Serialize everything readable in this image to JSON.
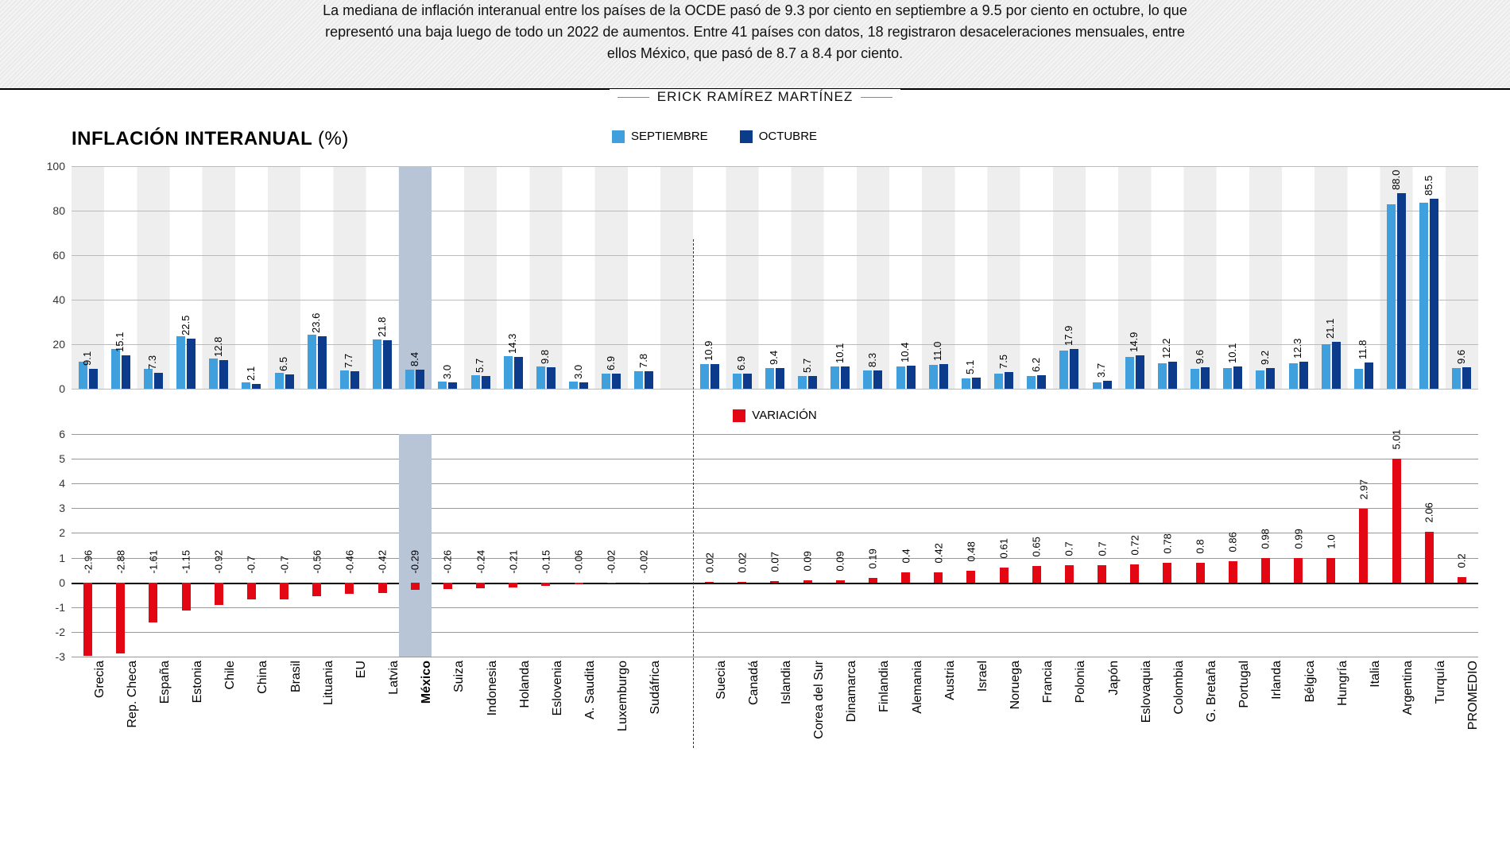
{
  "header": {
    "subtitle": "La mediana de inflación interanual entre los países de la OCDE pasó de 9.3 por ciento en septiembre a 9.5 por ciento en octubre, lo que representó una baja luego de todo un 2022 de aumentos. Entre 41 países con datos, 18 registraron desaceleraciones mensuales, entre ellos México, que pasó de 8.7 a 8.4 por ciento.",
    "author": "ERICK RAMÍREZ MARTÍNEZ"
  },
  "chart1": {
    "title": "INFLACIÓN INTERANUAL",
    "unit": "(%)",
    "legend": {
      "sep": "SEPTIEMBRE",
      "oct": "OCTUBRE"
    },
    "colors": {
      "sep": "#3fa0dd",
      "oct": "#0d3b8c",
      "stripe": "#eeeeee"
    },
    "yticks": [
      0,
      20,
      40,
      60,
      80,
      100
    ],
    "ymax": 100,
    "title_fontsize": 24
  },
  "chart2": {
    "legend": "VARIACIÓN",
    "color": "#e30613",
    "yticks": [
      -3,
      -2,
      -1,
      0,
      1,
      2,
      3,
      4,
      5,
      6
    ],
    "ymin": -3,
    "ymax": 6
  },
  "highlight_country": "México",
  "separator_after_index": 20,
  "countries": [
    {
      "name": "Grecia",
      "sep": 12.0,
      "oct": 9.1,
      "var": -2.96
    },
    {
      "name": "Rep. Checa",
      "sep": 18.0,
      "oct": 15.1,
      "var": -2.88
    },
    {
      "name": "España",
      "sep": 8.9,
      "oct": 7.3,
      "var": -1.61
    },
    {
      "name": "Estonia",
      "sep": 23.7,
      "oct": 22.5,
      "var": -1.15
    },
    {
      "name": "Chile",
      "sep": 13.7,
      "oct": 12.8,
      "var": -0.92
    },
    {
      "name": "China",
      "sep": 2.8,
      "oct": 2.1,
      "var": -0.7
    },
    {
      "name": "Brasil",
      "sep": 7.2,
      "oct": 6.5,
      "var": -0.7
    },
    {
      "name": "Lituania",
      "sep": 24.2,
      "oct": 23.6,
      "var": -0.56
    },
    {
      "name": "EU",
      "sep": 8.2,
      "oct": 7.7,
      "var": -0.46
    },
    {
      "name": "Latvia",
      "sep": 22.2,
      "oct": 21.8,
      "var": -0.42
    },
    {
      "name": "México",
      "sep": 8.7,
      "oct": 8.4,
      "var": -0.29
    },
    {
      "name": "Suiza",
      "sep": 3.3,
      "oct": 3.0,
      "var": -0.26
    },
    {
      "name": "Indonesia",
      "sep": 5.9,
      "oct": 5.7,
      "var": -0.24
    },
    {
      "name": "Holanda",
      "sep": 14.5,
      "oct": 14.3,
      "var": -0.21
    },
    {
      "name": "Eslovenia",
      "sep": 10.0,
      "oct": 9.8,
      "var": -0.15
    },
    {
      "name": "A. Saudita",
      "sep": 3.1,
      "oct": 3.0,
      "var": -0.06
    },
    {
      "name": "Luxemburgo",
      "sep": 6.9,
      "oct": 6.9,
      "var": -0.02
    },
    {
      "name": "Sudáfrica",
      "sep": 7.8,
      "oct": 7.8,
      "var": -0.02
    },
    {
      "name": "",
      "sep": null,
      "oct": null,
      "var": null
    },
    {
      "name": "Suecia",
      "sep": 10.9,
      "oct": 10.9,
      "var": 0.02
    },
    {
      "name": "Canadá",
      "sep": 6.9,
      "oct": 6.9,
      "var": 0.02
    },
    {
      "name": "Islandia",
      "sep": 9.3,
      "oct": 9.4,
      "var": 0.07
    },
    {
      "name": "Corea del Sur",
      "sep": 5.6,
      "oct": 5.7,
      "var": 0.09
    },
    {
      "name": "Dinamarca",
      "sep": 10.0,
      "oct": 10.1,
      "var": 0.09
    },
    {
      "name": "Finlandia",
      "sep": 8.1,
      "oct": 8.3,
      "var": 0.19
    },
    {
      "name": "Alemania",
      "sep": 10.0,
      "oct": 10.4,
      "var": 0.4
    },
    {
      "name": "Austria",
      "sep": 10.6,
      "oct": 11.0,
      "var": 0.42
    },
    {
      "name": "Israel",
      "sep": 4.6,
      "oct": 5.1,
      "var": 0.48
    },
    {
      "name": "Noruega",
      "sep": 6.9,
      "oct": 7.5,
      "var": 0.61
    },
    {
      "name": "Francia",
      "sep": 5.6,
      "oct": 6.2,
      "var": 0.65
    },
    {
      "name": "Polonia",
      "sep": 17.2,
      "oct": 17.9,
      "var": 0.7
    },
    {
      "name": "Japón",
      "sep": 3.0,
      "oct": 3.7,
      "var": 0.7
    },
    {
      "name": "Eslovaquia",
      "sep": 14.2,
      "oct": 14.9,
      "var": 0.72
    },
    {
      "name": "Colombia",
      "sep": 11.4,
      "oct": 12.2,
      "var": 0.78
    },
    {
      "name": "G. Bretaña",
      "sep": 8.8,
      "oct": 9.6,
      "var": 0.8
    },
    {
      "name": "Portugal",
      "sep": 9.3,
      "oct": 10.1,
      "var": 0.86
    },
    {
      "name": "Irlanda",
      "sep": 8.2,
      "oct": 9.2,
      "var": 0.98
    },
    {
      "name": "Bélgica",
      "sep": 11.3,
      "oct": 12.3,
      "var": 0.99
    },
    {
      "name": "Hungría",
      "sep": 20.1,
      "oct": 21.1,
      "var": 1.0
    },
    {
      "name": "Italia",
      "sep": 8.9,
      "oct": 11.8,
      "var": 2.97
    },
    {
      "name": "Argentina",
      "sep": 83.0,
      "oct": 88.0,
      "var": 5.01
    },
    {
      "name": "Turquía",
      "sep": 83.5,
      "oct": 85.5,
      "var": 2.06
    },
    {
      "name": "PROMEDIO",
      "sep": 9.4,
      "oct": 9.6,
      "var": 0.2
    }
  ]
}
